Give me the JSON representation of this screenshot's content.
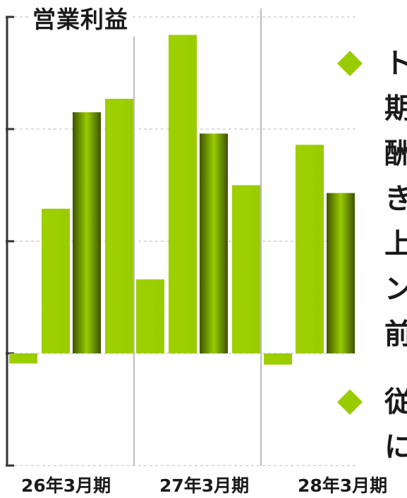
{
  "chart_data": {
    "type": "bar",
    "title": "営業利益",
    "groups": [
      "26年3月期",
      "27年3月期",
      "28年3月期"
    ],
    "bars": [
      {
        "group": 0,
        "value": -0.9,
        "style": "light"
      },
      {
        "group": 0,
        "value": 12.9,
        "style": "light"
      },
      {
        "group": 0,
        "value": 21.5,
        "style": "dark"
      },
      {
        "group": 0,
        "value": 22.7,
        "style": "light"
      },
      {
        "group": 1,
        "value": 6.6,
        "style": "light"
      },
      {
        "group": 1,
        "value": 28.4,
        "style": "light"
      },
      {
        "group": 1,
        "value": 19.6,
        "style": "dark"
      },
      {
        "group": 1,
        "value": 15.0,
        "style": "light"
      },
      {
        "group": 2,
        "value": -1.0,
        "style": "light"
      },
      {
        "group": 2,
        "value": 18.6,
        "style": "light"
      },
      {
        "group": 2,
        "value": 14.3,
        "style": "dark"
      }
    ],
    "ylim": [
      -10,
      30
    ],
    "ticks": [
      -10,
      0,
      10,
      20,
      30
    ],
    "grid": true,
    "colors": {
      "light": "#99cc00",
      "dark": "#4d6600"
    }
  },
  "bullets": [
    {
      "text": "ト期酬き上ン前"
    },
    {
      "text": "従に"
    }
  ]
}
